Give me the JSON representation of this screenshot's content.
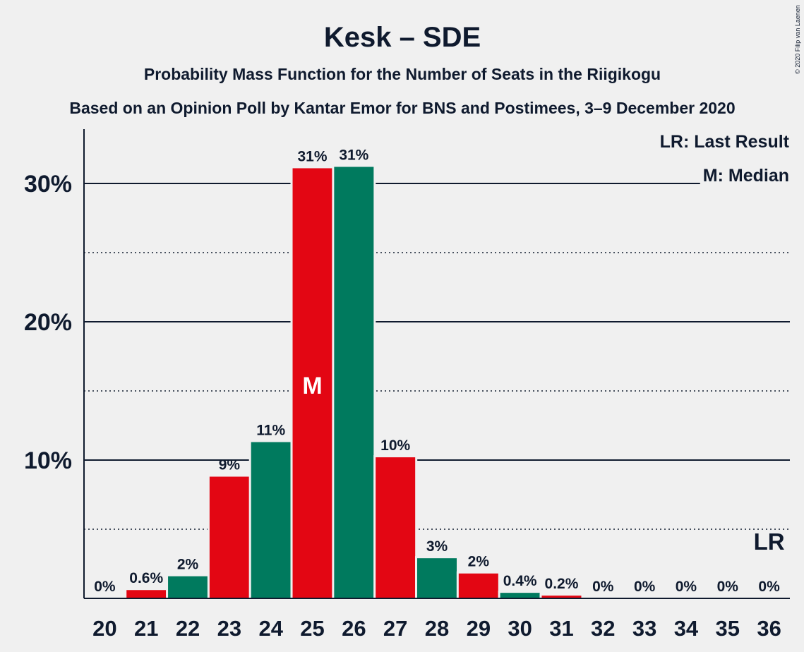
{
  "chart_data": {
    "type": "bar",
    "title": "Kesk – SDE",
    "subtitle": "Probability Mass Function for the Number of Seats in the Riigikogu",
    "subtitle2": "Based on an Opinion Poll by Kantar Emor for BNS and Postimees, 3–9 December 2020",
    "copyright": "© 2020 Filip van Laenen",
    "categories": [
      "20",
      "21",
      "22",
      "23",
      "24",
      "25",
      "26",
      "27",
      "28",
      "29",
      "30",
      "31",
      "32",
      "33",
      "34",
      "35",
      "36"
    ],
    "values": [
      0,
      0.6,
      1.6,
      8.8,
      11.3,
      31.1,
      31.2,
      10.2,
      2.9,
      1.8,
      0.4,
      0.2,
      0,
      0,
      0,
      0,
      0
    ],
    "labels": [
      "0%",
      "0.6%",
      "2%",
      "9%",
      "11%",
      "31%",
      "31%",
      "10%",
      "3%",
      "2%",
      "0.4%",
      "0.2%",
      "0%",
      "0%",
      "0%",
      "0%",
      "0%"
    ],
    "ylim": [
      0,
      33
    ],
    "yticks": [
      10,
      20,
      30
    ],
    "ytick_labels": [
      "10%",
      "20%",
      "30%"
    ],
    "minor_gridlines": [
      5,
      15,
      25
    ],
    "median_category": "25",
    "median_marker": "M",
    "last_result_category": "36",
    "last_result_marker": "LR",
    "legend": {
      "last_result": "LR: Last Result",
      "median": "M: Median"
    },
    "colors": {
      "red": "#e30613",
      "green": "#007a5e",
      "text": "#0f1a2e",
      "background": "#f0f0f0"
    }
  }
}
